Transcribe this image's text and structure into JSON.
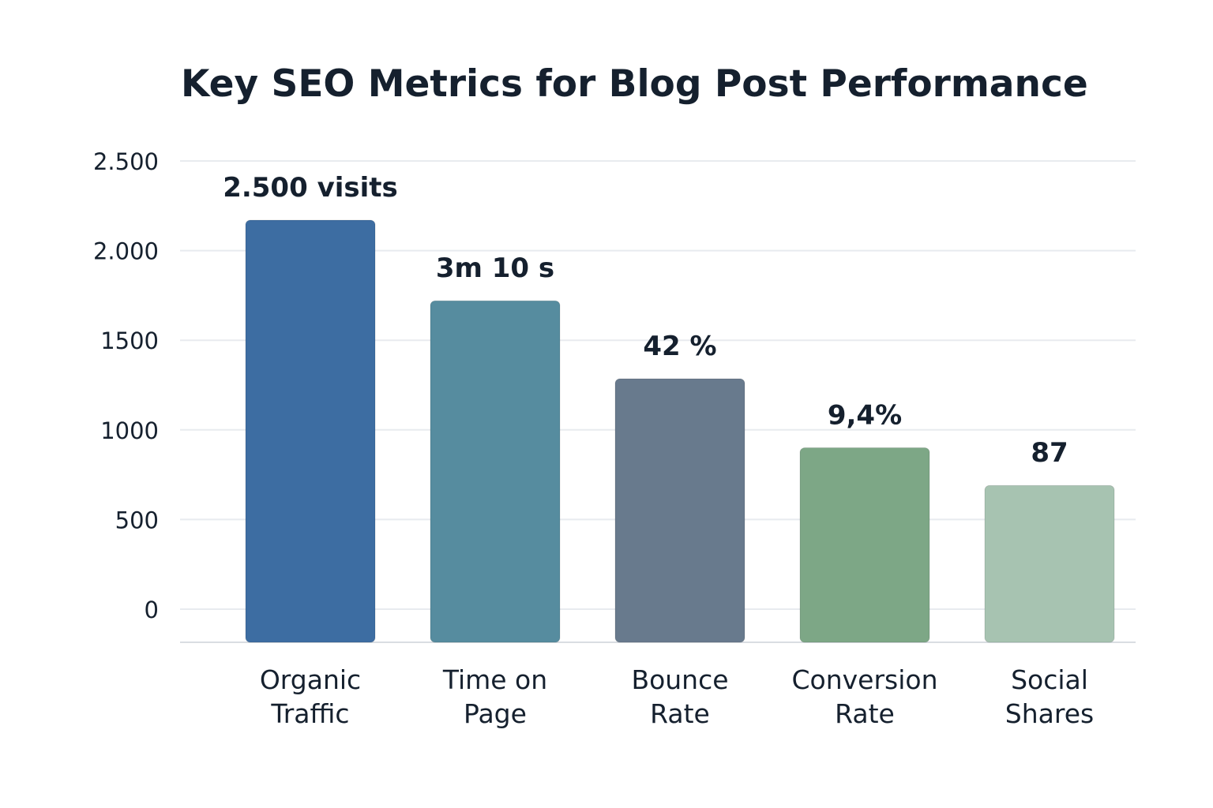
{
  "chart_data": {
    "type": "bar",
    "title": "Key SEO Metrics for Blog Post Performance",
    "xlabel": "",
    "ylabel": "",
    "ylim": [
      0,
      2500
    ],
    "y_ticks": [
      {
        "value": 0,
        "label": "0"
      },
      {
        "value": 500,
        "label": "500"
      },
      {
        "value": 1000,
        "label": "1000"
      },
      {
        "value": 1500,
        "label": "1500"
      },
      {
        "value": 2000,
        "label": "2.000"
      },
      {
        "value": 2500,
        "label": "2.500"
      }
    ],
    "grid": true,
    "legend": "none",
    "categories": [
      [
        "Organic",
        "Traffic"
      ],
      [
        "Time on",
        "Page"
      ],
      [
        "Bounce",
        "Rate"
      ],
      [
        "Conversion",
        "Rate"
      ],
      [
        "Social",
        "Shares"
      ]
    ],
    "values": [
      2170,
      1720,
      1285,
      900,
      690
    ],
    "data_labels": [
      "2.500 visits",
      "3m 10 s",
      "42 %",
      "9,4%",
      "87"
    ],
    "colors": [
      "#3d6da2",
      "#568c9f",
      "#687a8d",
      "#7da786",
      "#a7c3b1"
    ]
  }
}
